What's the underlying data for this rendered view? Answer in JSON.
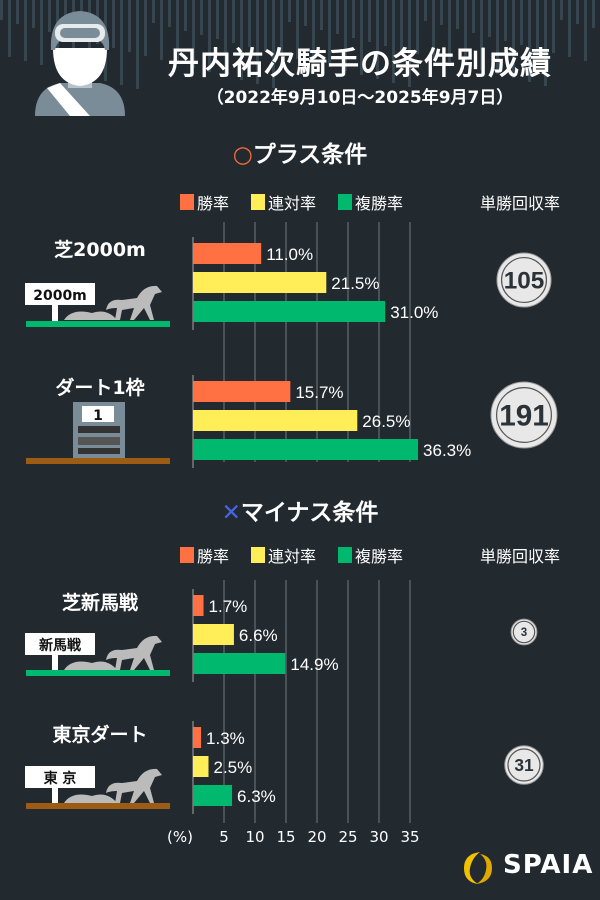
{
  "header": {
    "title": "丹内祐次騎手の条件別成績",
    "period": "（2022年9月10日～2025年9月7日）"
  },
  "sections": [
    {
      "marker": "○",
      "marker_color": "#f26b3a",
      "title": "プラス条件"
    },
    {
      "marker": "✕",
      "marker_color": "#4a63e6",
      "title": "マイナス条件"
    }
  ],
  "legend": {
    "items": [
      {
        "label": "勝率",
        "color": "#ff7043"
      },
      {
        "label": "連対率",
        "color": "#ffee58"
      },
      {
        "label": "複勝率",
        "color": "#00b86e"
      }
    ],
    "roi_label": "単勝回収率"
  },
  "signs": {
    "s0": "2000m",
    "s1": "1",
    "s2": "新馬戦",
    "s3": "東 京"
  },
  "chart_data": {
    "type": "bar",
    "orientation": "horizontal",
    "series_names": [
      "勝率",
      "連対率",
      "複勝率"
    ],
    "categories": [
      "芝2000m",
      "ダート1枠",
      "芝新馬戦",
      "東京ダート"
    ],
    "series": [
      {
        "name": "勝率",
        "values": [
          11.0,
          15.7,
          1.7,
          1.3
        ]
      },
      {
        "name": "連対率",
        "values": [
          21.5,
          26.5,
          6.6,
          2.5
        ]
      },
      {
        "name": "複勝率",
        "values": [
          31.0,
          36.3,
          14.9,
          6.3
        ]
      }
    ],
    "data_labels": [
      [
        "11.0%",
        "21.5%",
        "31.0%"
      ],
      [
        "15.7%",
        "26.5%",
        "36.3%"
      ],
      [
        "1.7%",
        "6.6%",
        "14.9%"
      ],
      [
        "1.3%",
        "2.5%",
        "6.3%"
      ]
    ],
    "roi": [
      "105",
      "191",
      "3",
      "31"
    ],
    "xlabel": "(%)",
    "xticks": [
      "5",
      "10",
      "15",
      "20",
      "25",
      "30",
      "35"
    ],
    "xlim": [
      0,
      35
    ],
    "grid": true
  },
  "brand": {
    "name": "SPAIA"
  }
}
